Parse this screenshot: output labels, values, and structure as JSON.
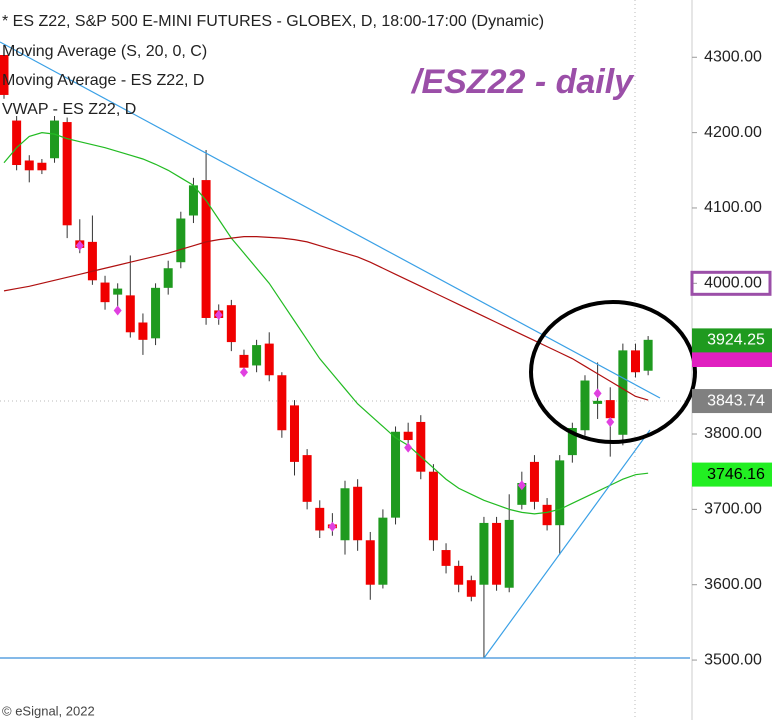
{
  "chart_data": {
    "type": "candlestick",
    "title": "* ES Z22, S&P 500 E-MINI FUTURES - GLOBEX, D, 18:00-17:00 (Dynamic)",
    "annotation": "/ESZ22 - daily",
    "footer": "© eSignal, 2022",
    "ylim": [
      3447,
      4376
    ],
    "yticks": [
      {
        "value": 4300,
        "label": "4300.00"
      },
      {
        "value": 4200,
        "label": "4200.00"
      },
      {
        "value": 4100,
        "label": "4100.00"
      },
      {
        "value": 4000,
        "label": "4000.00"
      },
      {
        "value": 3800,
        "label": "3800.00"
      },
      {
        "value": 3700,
        "label": "3700.00"
      },
      {
        "value": 3600,
        "label": "3600.00"
      },
      {
        "value": 3500,
        "label": "3500.00"
      }
    ],
    "up_color": "#1f9a1f",
    "down_color": "#f00000",
    "open": [
      4303,
      4216,
      4163,
      4160,
      4166,
      4214,
      4057,
      4055,
      4001,
      3985,
      3984,
      3948,
      3927,
      3994,
      4028,
      4090,
      4137,
      3964,
      3971,
      3905,
      3891,
      3920,
      3878,
      3838,
      3772,
      3702,
      3680,
      3659,
      3730,
      3659,
      3600,
      3689,
      3803,
      3816,
      3750,
      3646,
      3625,
      3606,
      3600,
      3682,
      3596,
      3706,
      3763,
      3706,
      3679,
      3772,
      3805,
      3840,
      3845,
      3799,
      3911,
      3884
    ],
    "high": [
      4310,
      4222,
      4170,
      4165,
      4222,
      4220,
      4085,
      4090,
      4010,
      4000,
      4037,
      3960,
      4000,
      4030,
      4095,
      4140,
      4177,
      3972,
      3978,
      3912,
      3925,
      3935,
      3882,
      3845,
      3780,
      3712,
      3695,
      3738,
      3740,
      3670,
      3700,
      3810,
      3815,
      3825,
      3760,
      3655,
      3632,
      3612,
      3690,
      3690,
      3720,
      3750,
      3772,
      3715,
      3772,
      3815,
      3878,
      3895,
      3862,
      3920,
      3920,
      3930
    ],
    "low": [
      4245,
      4150,
      4134,
      4145,
      4160,
      4060,
      4040,
      3998,
      3965,
      3960,
      3928,
      3905,
      3918,
      3985,
      4020,
      4080,
      3945,
      3945,
      3910,
      3878,
      3882,
      3870,
      3795,
      3745,
      3700,
      3662,
      3665,
      3640,
      3645,
      3580,
      3595,
      3680,
      3780,
      3740,
      3645,
      3615,
      3590,
      3578,
      3503,
      3592,
      3590,
      3700,
      3700,
      3672,
      3640,
      3762,
      3798,
      3820,
      3770,
      3785,
      3875,
      3878
    ],
    "close": [
      4250,
      4157,
      4150,
      4150,
      4216,
      4077,
      4047,
      4004,
      3975,
      3993,
      3935,
      3925,
      3994,
      4020,
      4086,
      4130,
      3954,
      3954,
      3922,
      3888,
      3918,
      3878,
      3805,
      3763,
      3710,
      3672,
      3675,
      3728,
      3659,
      3600,
      3689,
      3803,
      3792,
      3750,
      3659,
      3625,
      3600,
      3584,
      3682,
      3600,
      3686,
      3735,
      3710,
      3679,
      3765,
      3808,
      3871,
      3844,
      3821,
      3911,
      3882,
      3925
    ],
    "series": [
      {
        "name": "Moving Average (S, 20, 0, C)",
        "color": "#22bb22",
        "values": [
          4160,
          4180,
          4195,
          4200,
          4198,
          4192,
          4188,
          4184,
          4180,
          4175,
          4170,
          4165,
          4158,
          4150,
          4140,
          4130,
          4110,
          4085,
          4060,
          4040,
          4020,
          4000,
          3975,
          3950,
          3925,
          3900,
          3880,
          3860,
          3840,
          3825,
          3810,
          3795,
          3785,
          3770,
          3755,
          3740,
          3728,
          3720,
          3712,
          3706,
          3700,
          3696,
          3694,
          3696,
          3700,
          3708,
          3716,
          3724,
          3732,
          3740,
          3746,
          3748
        ]
      },
      {
        "name": "Moving Average - ES Z22, D",
        "color": "#b01010",
        "values": [
          3990,
          3993,
          3996,
          4000,
          4004,
          4008,
          4012,
          4016,
          4020,
          4024,
          4028,
          4032,
          4036,
          4040,
          4045,
          4050,
          4055,
          4058,
          4060,
          4062,
          4062,
          4061,
          4060,
          4058,
          4055,
          4050,
          4045,
          4040,
          4035,
          4028,
          4020,
          4012,
          4004,
          3996,
          3988,
          3980,
          3972,
          3964,
          3956,
          3948,
          3940,
          3932,
          3924,
          3916,
          3908,
          3900,
          3890,
          3880,
          3870,
          3860,
          3850,
          3845
        ]
      },
      {
        "name": "VWAP - ES Z22, D",
        "color": "#e040e0",
        "values": [
          null,
          null,
          null,
          null,
          null,
          null,
          4050,
          null,
          null,
          3964,
          null,
          null,
          null,
          null,
          null,
          null,
          null,
          3958,
          null,
          3882,
          null,
          null,
          null,
          null,
          null,
          null,
          3677,
          null,
          null,
          null,
          null,
          null,
          3782,
          null,
          null,
          null,
          null,
          null,
          null,
          null,
          null,
          3732,
          null,
          null,
          null,
          null,
          null,
          3854,
          3816,
          null,
          null,
          null
        ]
      }
    ],
    "price_labels": [
      {
        "value": 3924.25,
        "color": "#1f9a1f",
        "text_color": "#ffffff"
      },
      {
        "value": 3843.74,
        "color": "#808080",
        "text_color": "#ffffff"
      },
      {
        "value": 3746.16,
        "color": "#22ee22",
        "text_color": "#000000"
      }
    ]
  }
}
